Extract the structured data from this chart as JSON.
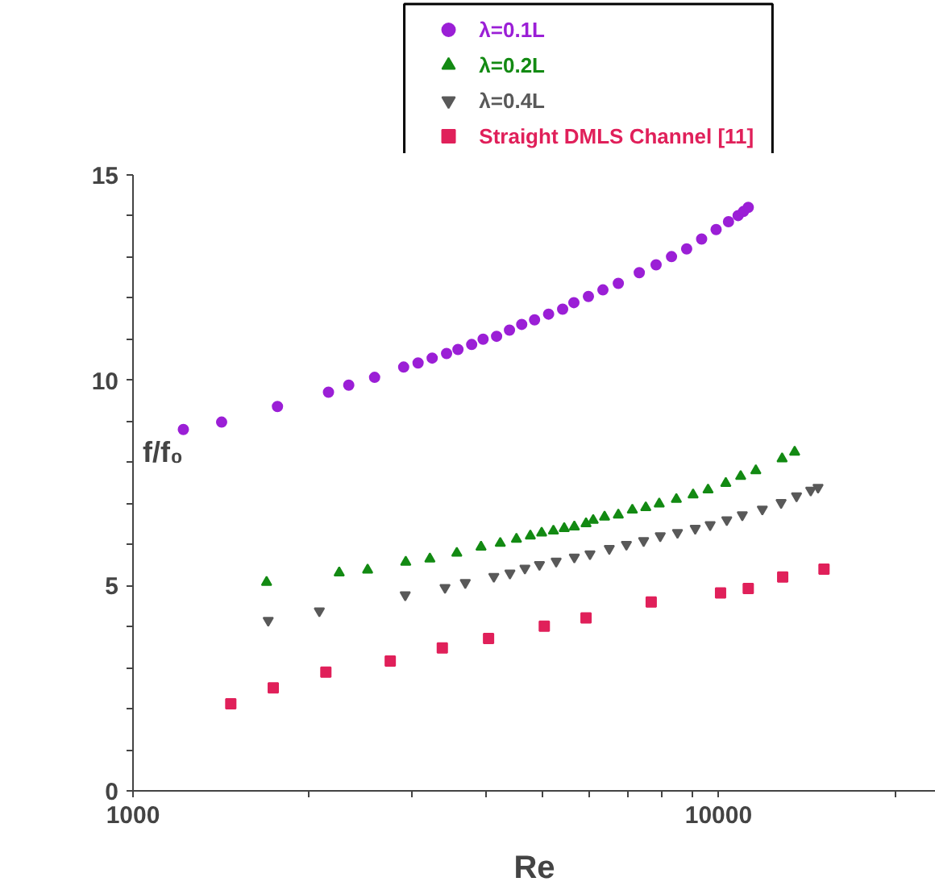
{
  "chart_data": {
    "type": "scatter",
    "xlabel": "Re",
    "ylabel": "f/f₀",
    "log": "x",
    "xlim": [
      1000,
      23500
    ],
    "ylim": [
      0,
      15
    ],
    "xticks": [
      1000,
      {
        "value": 2000,
        "label": null
      },
      {
        "value": 3000,
        "label": null
      },
      {
        "value": 4000,
        "label": null
      },
      {
        "value": 5000,
        "label": null
      },
      {
        "value": 6000,
        "label": null
      },
      {
        "value": 7000,
        "label": null
      },
      {
        "value": 8000,
        "label": null
      },
      {
        "value": 9000,
        "label": null
      },
      10000,
      {
        "value": 20000,
        "label": null
      }
    ],
    "yticks": [
      0,
      {
        "value": 1,
        "label": null
      },
      {
        "value": 2,
        "label": null
      },
      {
        "value": 3,
        "label": null
      },
      {
        "value": 4,
        "label": null
      },
      5,
      {
        "value": 6,
        "label": null
      },
      {
        "value": 7,
        "label": null
      },
      {
        "value": 8,
        "label": null
      },
      {
        "value": 9,
        "label": null
      },
      10,
      {
        "value": 11,
        "label": null
      },
      {
        "value": 12,
        "label": null
      },
      {
        "value": 13,
        "label": null
      },
      {
        "value": 14,
        "label": null
      },
      15
    ],
    "grid": false,
    "legend": "top",
    "series": [
      {
        "name": "λ=0.1L",
        "color": "#9b1fd6",
        "marker": "circle",
        "x": [
          1219,
          1417,
          1765,
          2157,
          2336,
          2586,
          2899,
          3068,
          3243,
          3432,
          3589,
          3788,
          3962,
          4178,
          4395,
          4612,
          4851,
          5126,
          5417,
          5662,
          5995,
          6347,
          6743,
          7322,
          7823,
          8312,
          8822,
          9357,
          9906,
          10400,
          10800,
          11030,
          11240
        ],
        "values": [
          8.8,
          8.98,
          9.36,
          9.71,
          9.88,
          10.07,
          10.32,
          10.42,
          10.54,
          10.65,
          10.75,
          10.87,
          11.0,
          11.07,
          11.22,
          11.36,
          11.47,
          11.61,
          11.73,
          11.89,
          12.04,
          12.2,
          12.36,
          12.62,
          12.81,
          13.01,
          13.2,
          13.44,
          13.67,
          13.86,
          14.01,
          14.11,
          14.21
        ]
      },
      {
        "name": "λ=0.2L",
        "color": "#138a13",
        "marker": "triangle",
        "x": [
          1691,
          2250,
          2516,
          2923,
          3214,
          3573,
          3930,
          4239,
          4517,
          4771,
          4988,
          5224,
          5451,
          5672,
          5939,
          6109,
          6388,
          6743,
          7125,
          7512,
          7920,
          8472,
          9048,
          9596,
          10290,
          10910,
          11580,
          12840,
          13490
        ],
        "values": [
          5.08,
          5.31,
          5.38,
          5.57,
          5.65,
          5.79,
          5.94,
          6.03,
          6.13,
          6.21,
          6.28,
          6.33,
          6.39,
          6.43,
          6.51,
          6.59,
          6.67,
          6.72,
          6.84,
          6.9,
          6.99,
          7.1,
          7.21,
          7.33,
          7.49,
          7.66,
          7.8,
          8.09,
          8.25
        ]
      },
      {
        "name": "λ=0.4L",
        "color": "#595959",
        "marker": "triangle_down",
        "x": [
          1702,
          2081,
          2917,
          3411,
          3694,
          4133,
          4403,
          4670,
          4945,
          5281,
          5672,
          6032,
          6508,
          6961,
          7449,
          7952,
          8510,
          9124,
          9676,
          10330,
          10980,
          11880,
          12790,
          13590,
          14370,
          14790
        ],
        "values": [
          4.15,
          4.38,
          4.77,
          4.95,
          5.07,
          5.22,
          5.3,
          5.42,
          5.51,
          5.59,
          5.69,
          5.77,
          5.9,
          6.0,
          6.09,
          6.21,
          6.29,
          6.39,
          6.48,
          6.6,
          6.72,
          6.86,
          7.02,
          7.18,
          7.32,
          7.39
        ]
      },
      {
        "name": "Straight DMLS Channel [11]",
        "color": "#e0205a",
        "marker": "square",
        "x": [
          1469,
          1736,
          2135,
          2750,
          3375,
          4048,
          5040,
          5939,
          7674,
          10080,
          11240,
          12870,
          15140
        ],
        "values": [
          2.12,
          2.51,
          2.89,
          3.16,
          3.48,
          3.71,
          4.01,
          4.21,
          4.6,
          4.82,
          4.93,
          5.21,
          5.4
        ]
      }
    ]
  }
}
